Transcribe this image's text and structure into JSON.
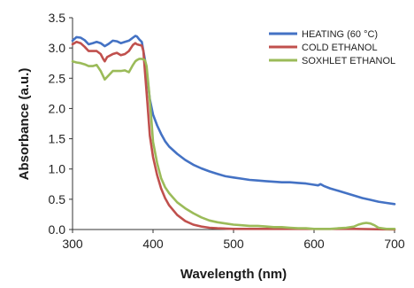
{
  "chart_data": {
    "type": "line",
    "title": "",
    "xlabel": "Wavelength (nm)",
    "ylabel": "Absorbance (a.u.)",
    "xlim": [
      300,
      700
    ],
    "ylim": [
      0,
      3.5
    ],
    "x_ticks": [
      "300",
      "400",
      "500",
      "600",
      "700"
    ],
    "y_ticks": [
      "0.0",
      "0.5",
      "1.0",
      "1.5",
      "2.0",
      "2.5",
      "3.0",
      "3.5"
    ],
    "grid": false,
    "legend_position": "top-right",
    "series": [
      {
        "name": "HEATING (60 °C)",
        "color": "#4472C4",
        "points": [
          [
            300,
            3.12
          ],
          [
            305,
            3.18
          ],
          [
            310,
            3.17
          ],
          [
            315,
            3.13
          ],
          [
            320,
            3.06
          ],
          [
            325,
            3.08
          ],
          [
            330,
            3.1
          ],
          [
            335,
            3.08
          ],
          [
            340,
            3.03
          ],
          [
            345,
            3.07
          ],
          [
            350,
            3.12
          ],
          [
            355,
            3.11
          ],
          [
            360,
            3.08
          ],
          [
            365,
            3.1
          ],
          [
            370,
            3.12
          ],
          [
            375,
            3.17
          ],
          [
            378,
            3.2
          ],
          [
            380,
            3.19
          ],
          [
            383,
            3.14
          ],
          [
            386,
            3.1
          ],
          [
            390,
            2.8
          ],
          [
            393,
            2.5
          ],
          [
            396,
            2.15
          ],
          [
            400,
            1.9
          ],
          [
            405,
            1.72
          ],
          [
            410,
            1.58
          ],
          [
            415,
            1.46
          ],
          [
            420,
            1.37
          ],
          [
            430,
            1.25
          ],
          [
            440,
            1.15
          ],
          [
            450,
            1.07
          ],
          [
            460,
            1.01
          ],
          [
            470,
            0.96
          ],
          [
            480,
            0.92
          ],
          [
            490,
            0.88
          ],
          [
            500,
            0.86
          ],
          [
            510,
            0.84
          ],
          [
            520,
            0.82
          ],
          [
            530,
            0.81
          ],
          [
            540,
            0.8
          ],
          [
            550,
            0.79
          ],
          [
            560,
            0.78
          ],
          [
            570,
            0.78
          ],
          [
            580,
            0.77
          ],
          [
            590,
            0.76
          ],
          [
            600,
            0.74
          ],
          [
            605,
            0.73
          ],
          [
            608,
            0.75
          ],
          [
            612,
            0.72
          ],
          [
            620,
            0.68
          ],
          [
            630,
            0.64
          ],
          [
            640,
            0.6
          ],
          [
            650,
            0.56
          ],
          [
            660,
            0.52
          ],
          [
            670,
            0.49
          ],
          [
            680,
            0.46
          ],
          [
            690,
            0.44
          ],
          [
            700,
            0.42
          ]
        ]
      },
      {
        "name": "COLD ETHANOL",
        "color": "#C0504D",
        "points": [
          [
            300,
            3.06
          ],
          [
            305,
            3.1
          ],
          [
            310,
            3.08
          ],
          [
            315,
            3.02
          ],
          [
            320,
            2.95
          ],
          [
            325,
            2.95
          ],
          [
            330,
            2.95
          ],
          [
            335,
            2.9
          ],
          [
            338,
            2.82
          ],
          [
            340,
            2.78
          ],
          [
            343,
            2.85
          ],
          [
            350,
            2.9
          ],
          [
            355,
            2.92
          ],
          [
            360,
            2.88
          ],
          [
            365,
            2.9
          ],
          [
            370,
            2.95
          ],
          [
            375,
            3.05
          ],
          [
            378,
            3.08
          ],
          [
            380,
            3.06
          ],
          [
            383,
            3.05
          ],
          [
            386,
            3.04
          ],
          [
            388,
            2.95
          ],
          [
            390,
            2.6
          ],
          [
            393,
            2.1
          ],
          [
            396,
            1.55
          ],
          [
            400,
            1.2
          ],
          [
            405,
            0.9
          ],
          [
            410,
            0.68
          ],
          [
            415,
            0.52
          ],
          [
            420,
            0.4
          ],
          [
            430,
            0.24
          ],
          [
            440,
            0.14
          ],
          [
            450,
            0.08
          ],
          [
            460,
            0.05
          ],
          [
            470,
            0.03
          ],
          [
            480,
            0.02
          ],
          [
            500,
            0.01
          ],
          [
            550,
            0.01
          ],
          [
            600,
            0.01
          ],
          [
            650,
            0.01
          ],
          [
            700,
            0.0
          ]
        ]
      },
      {
        "name": "SOXHLET ETHANOL",
        "color": "#9BBB59",
        "points": [
          [
            300,
            2.78
          ],
          [
            305,
            2.76
          ],
          [
            310,
            2.75
          ],
          [
            315,
            2.73
          ],
          [
            320,
            2.7
          ],
          [
            325,
            2.7
          ],
          [
            330,
            2.72
          ],
          [
            335,
            2.62
          ],
          [
            340,
            2.48
          ],
          [
            345,
            2.55
          ],
          [
            350,
            2.62
          ],
          [
            355,
            2.62
          ],
          [
            360,
            2.62
          ],
          [
            365,
            2.63
          ],
          [
            370,
            2.6
          ],
          [
            375,
            2.72
          ],
          [
            378,
            2.78
          ],
          [
            380,
            2.8
          ],
          [
            383,
            2.82
          ],
          [
            386,
            2.82
          ],
          [
            390,
            2.8
          ],
          [
            392,
            2.7
          ],
          [
            395,
            2.3
          ],
          [
            398,
            1.8
          ],
          [
            400,
            1.45
          ],
          [
            405,
            1.1
          ],
          [
            410,
            0.85
          ],
          [
            415,
            0.7
          ],
          [
            420,
            0.6
          ],
          [
            430,
            0.45
          ],
          [
            440,
            0.35
          ],
          [
            450,
            0.27
          ],
          [
            460,
            0.2
          ],
          [
            470,
            0.15
          ],
          [
            480,
            0.12
          ],
          [
            490,
            0.1
          ],
          [
            500,
            0.08
          ],
          [
            510,
            0.07
          ],
          [
            520,
            0.06
          ],
          [
            530,
            0.06
          ],
          [
            540,
            0.05
          ],
          [
            550,
            0.04
          ],
          [
            560,
            0.04
          ],
          [
            570,
            0.03
          ],
          [
            580,
            0.02
          ],
          [
            590,
            0.02
          ],
          [
            600,
            0.01
          ],
          [
            610,
            0.01
          ],
          [
            620,
            0.01
          ],
          [
            630,
            0.02
          ],
          [
            640,
            0.03
          ],
          [
            650,
            0.05
          ],
          [
            655,
            0.08
          ],
          [
            660,
            0.1
          ],
          [
            665,
            0.11
          ],
          [
            670,
            0.1
          ],
          [
            675,
            0.07
          ],
          [
            680,
            0.03
          ],
          [
            690,
            0.01
          ],
          [
            700,
            0.01
          ]
        ]
      }
    ]
  }
}
